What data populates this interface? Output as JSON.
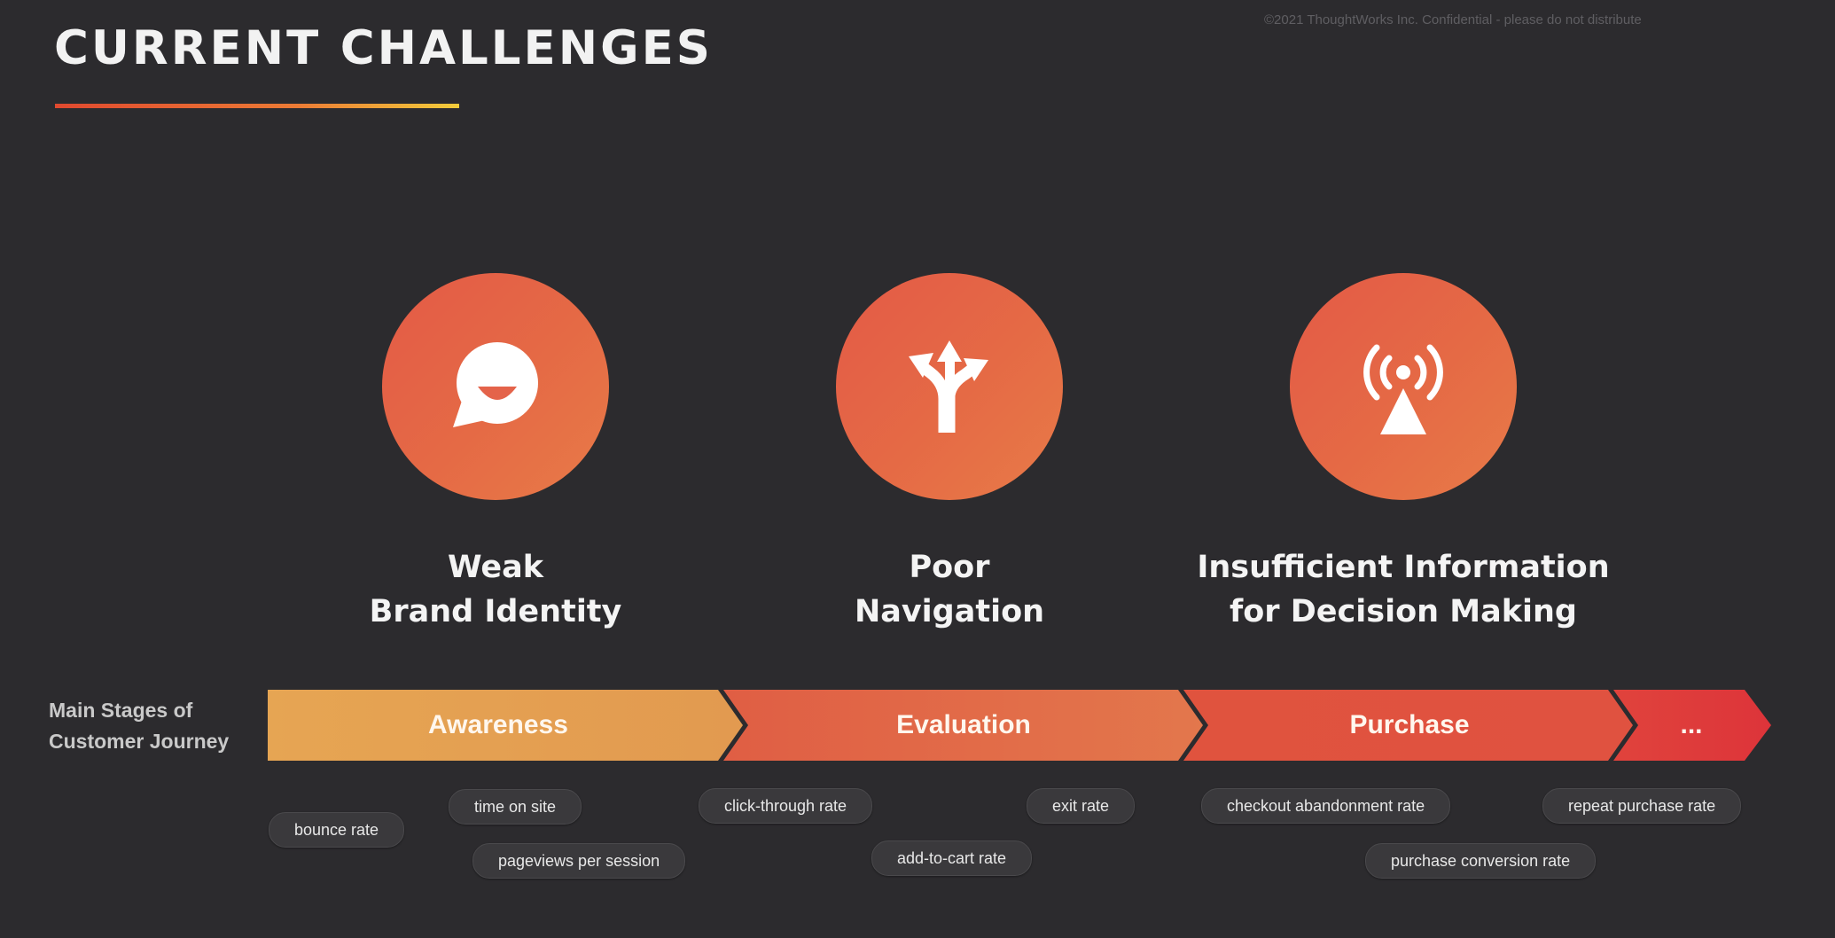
{
  "slide": {
    "title": "CURRENT CHALLENGES",
    "copyright": "©2021 ThoughtWorks Inc.  Confidential - please do not distribute"
  },
  "challenges": [
    {
      "icon": "chat-bubble-icon",
      "lines": [
        "Weak",
        "Brand Identity"
      ]
    },
    {
      "icon": "fork-arrows-icon",
      "lines": [
        "Poor",
        "Navigation"
      ]
    },
    {
      "icon": "broadcast-tower-icon",
      "lines": [
        "Insufficient Information",
        "for Decision Making"
      ]
    }
  ],
  "journey": {
    "label_lines": [
      "Main Stages of",
      "Customer Journey"
    ],
    "stages": [
      "Awareness",
      "Evaluation",
      "Purchase",
      "..."
    ],
    "colors": [
      "#e6a553",
      "#e4704a",
      "#e05340",
      "#df3f3a"
    ]
  },
  "metrics": [
    "bounce rate",
    "time on site",
    "pageviews per session",
    "click-through rate",
    "add-to-cart rate",
    "exit rate",
    "checkout abandonment rate",
    "purchase conversion rate",
    "repeat purchase rate"
  ]
}
